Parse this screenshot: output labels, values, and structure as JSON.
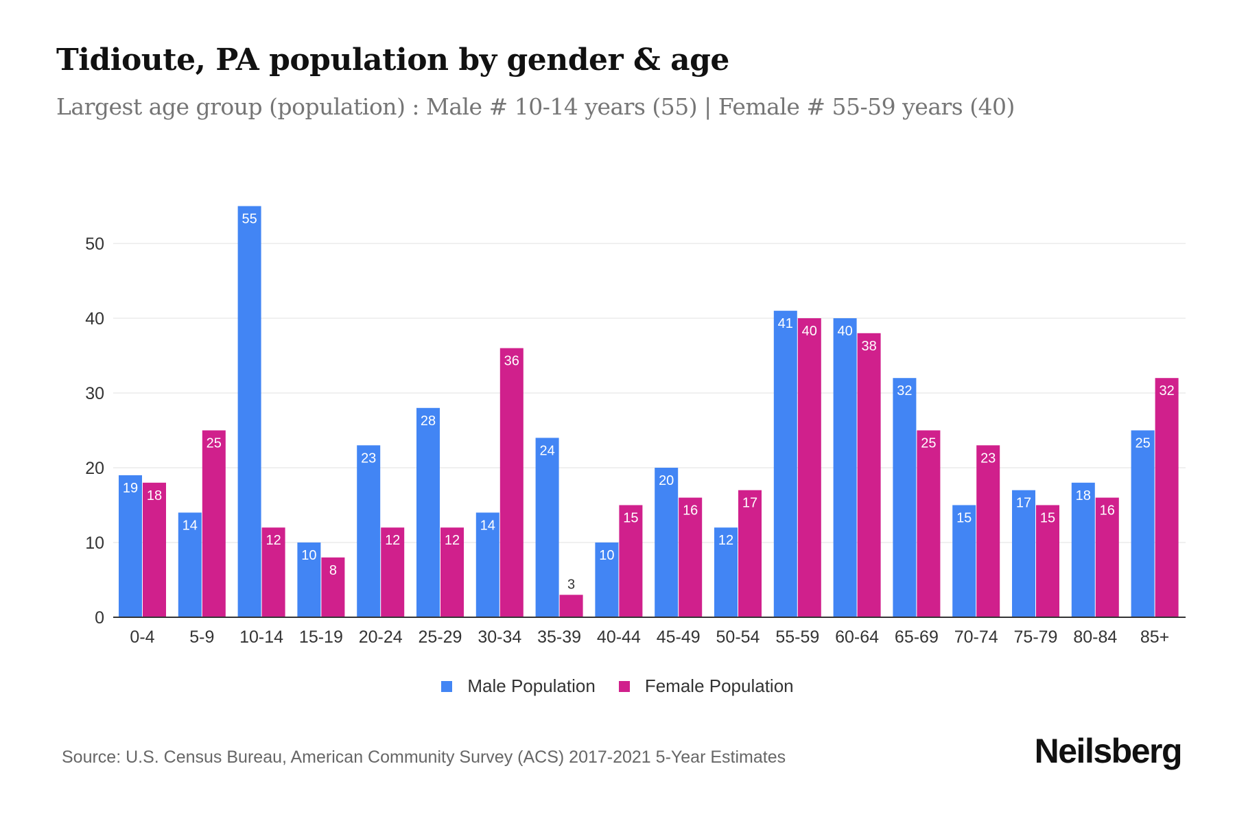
{
  "header": {
    "title": "Tidioute, PA population by gender & age",
    "subtitle": "Largest age group (population) : Male # 10-14 years (55) | Female # 55-59 years (40)"
  },
  "footer": {
    "source": "Source: U.S. Census Bureau, American Community Survey (ACS) 2017-2021 5-Year Estimates",
    "brand": "Neilsberg"
  },
  "colors": {
    "male": "#4285f4",
    "female": "#d0208c",
    "grid": "#ebebeb",
    "axis": "#333333"
  },
  "chart_data": {
    "type": "bar",
    "title": "Tidioute, PA population by gender & age",
    "subtitle": "Largest age group (population) : Male # 10-14 years (55) | Female # 55-59 years (40)",
    "xlabel": "",
    "ylabel": "",
    "ylim": [
      0,
      55
    ],
    "yticks": [
      0,
      10,
      20,
      30,
      40,
      50
    ],
    "grid": true,
    "legend_position": "bottom-center",
    "categories": [
      "0-4",
      "5-9",
      "10-14",
      "15-19",
      "20-24",
      "25-29",
      "30-34",
      "35-39",
      "40-44",
      "45-49",
      "50-54",
      "55-59",
      "60-64",
      "65-69",
      "70-74",
      "75-79",
      "80-84",
      "85+"
    ],
    "series": [
      {
        "name": "Male Population",
        "color": "#4285f4",
        "values": [
          19,
          14,
          55,
          10,
          23,
          28,
          14,
          24,
          10,
          20,
          12,
          41,
          40,
          32,
          15,
          17,
          18,
          25
        ]
      },
      {
        "name": "Female Population",
        "color": "#d0208c",
        "values": [
          18,
          25,
          12,
          8,
          12,
          12,
          36,
          3,
          15,
          16,
          17,
          40,
          38,
          25,
          23,
          15,
          16,
          32
        ]
      }
    ]
  }
}
